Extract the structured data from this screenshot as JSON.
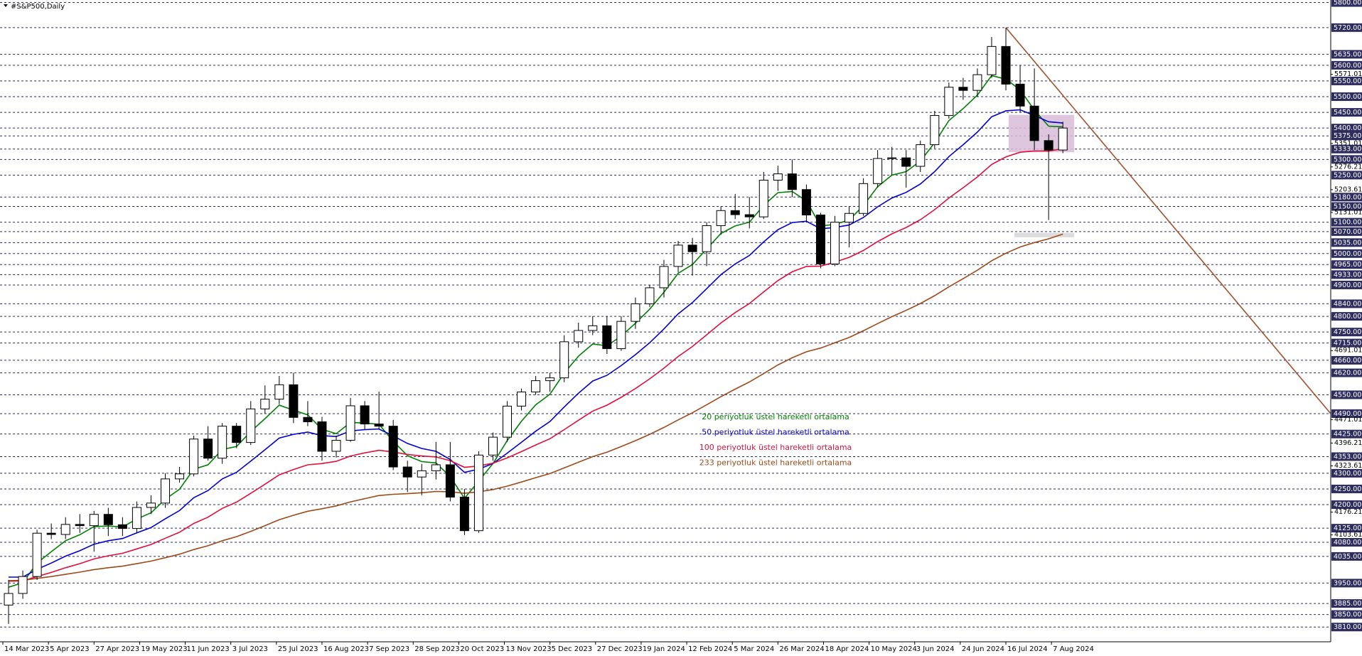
{
  "chart_data": {
    "type": "candlestick",
    "title": "#S&P500,Daily",
    "xlim": [
      -1,
      466
    ],
    "ylim": [
      3763,
      5808
    ],
    "x": [
      2,
      7,
      12,
      17,
      22,
      27,
      32,
      37,
      42,
      47,
      52,
      57,
      62,
      67,
      72,
      77,
      82,
      87,
      92,
      97,
      102,
      107,
      112,
      117,
      122,
      127,
      132,
      137,
      142,
      147,
      152,
      157,
      162,
      167,
      172,
      177,
      182,
      187,
      192,
      197,
      202,
      207,
      212,
      217,
      222,
      227,
      232,
      237,
      242,
      247,
      252,
      257,
      262,
      267,
      272,
      277,
      282,
      287,
      292,
      297,
      302,
      307,
      312,
      317,
      322,
      327,
      332,
      337,
      342,
      347,
      352,
      357,
      362,
      367,
      372
    ],
    "open": [
      3880,
      3917,
      3971,
      4109,
      4105,
      4137,
      4133,
      4169,
      4136,
      4124,
      4191,
      4205,
      4282,
      4298,
      4409,
      4348,
      4450,
      4398,
      4505,
      4536,
      4582,
      4478,
      4464,
      4370,
      4405,
      4515,
      4457,
      4450,
      4320,
      4288,
      4308,
      4327,
      4224,
      4117,
      4358,
      4415,
      4514,
      4559,
      4595,
      4604,
      4719,
      4755,
      4770,
      4697,
      4784,
      4840,
      4891,
      4959,
      5027,
      5006,
      5089,
      5137,
      5124,
      5117,
      5234,
      5254,
      5204,
      5123,
      4967,
      5100,
      5128,
      5223,
      5303,
      5305,
      5278,
      5347,
      5440,
      5530,
      5520,
      5570,
      5660,
      5540,
      5470,
      5360,
      5330
    ],
    "high": [
      3960,
      3990,
      4120,
      4140,
      4160,
      4170,
      4180,
      4190,
      4160,
      4210,
      4230,
      4300,
      4320,
      4420,
      4450,
      4460,
      4460,
      4530,
      4580,
      4610,
      4620,
      4530,
      4480,
      4420,
      4540,
      4530,
      4560,
      4470,
      4340,
      4330,
      4400,
      4400,
      4250,
      4370,
      4430,
      4530,
      4570,
      4610,
      4620,
      4740,
      4780,
      4800,
      4800,
      4800,
      4860,
      4900,
      4980,
      5040,
      5050,
      5100,
      5150,
      5190,
      5180,
      5260,
      5280,
      5300,
      5220,
      5130,
      5120,
      5150,
      5240,
      5330,
      5340,
      5330,
      5360,
      5455,
      5545,
      5560,
      5590,
      5690,
      5720,
      5600,
      5590,
      5380,
      5420
    ],
    "low": [
      3820,
      3900,
      3960,
      4090,
      4090,
      4110,
      4050,
      4100,
      4100,
      4110,
      4170,
      4190,
      4270,
      4290,
      4340,
      4330,
      4380,
      4390,
      4490,
      4520,
      4460,
      4450,
      4340,
      4350,
      4400,
      4440,
      4440,
      4310,
      4240,
      4230,
      4280,
      4210,
      4103,
      4110,
      4340,
      4400,
      4500,
      4550,
      4560,
      4590,
      4700,
      4740,
      4680,
      4690,
      4760,
      4830,
      4860,
      4940,
      4930,
      4960,
      5060,
      5110,
      5080,
      5110,
      5200,
      5180,
      5100,
      4953,
      4960,
      5020,
      5120,
      5210,
      5250,
      5210,
      5260,
      5335,
      5430,
      5490,
      5500,
      5560,
      5520,
      5450,
      5330,
      5107,
      5320
    ],
    "close": [
      3917,
      3971,
      4109,
      4105,
      4137,
      4133,
      4169,
      4136,
      4124,
      4191,
      4205,
      4282,
      4298,
      4409,
      4348,
      4450,
      4398,
      4505,
      4536,
      4582,
      4478,
      4464,
      4370,
      4405,
      4515,
      4457,
      4450,
      4320,
      4288,
      4308,
      4327,
      4224,
      4117,
      4358,
      4415,
      4514,
      4559,
      4595,
      4604,
      4719,
      4755,
      4770,
      4697,
      4784,
      4840,
      4891,
      4959,
      5027,
      5006,
      5089,
      5137,
      5124,
      5117,
      5234,
      5254,
      5204,
      5123,
      4967,
      5100,
      5128,
      5223,
      5303,
      5305,
      5278,
      5347,
      5440,
      5530,
      5520,
      5570,
      5660,
      5540,
      5470,
      5360,
      5330,
      5400
    ],
    "up_color": "#ffffff",
    "down_color": "#000000",
    "series": [
      {
        "name": "20 periyotluk üstel hareketli ortalama",
        "color": "#008000",
        "values": [
          3937,
          3951,
          4014,
          4050,
          4085,
          4104,
          4130,
          4132,
          4129,
          4154,
          4174,
          4217,
          4249,
          4313,
          4327,
          4376,
          4385,
          4433,
          4474,
          4517,
          4501,
          4486,
          4440,
          4426,
          4462,
          4460,
          4456,
          4402,
          4356,
          4337,
          4333,
          4289,
          4220,
          4275,
          4331,
          4404,
          4466,
          4518,
          4552,
          4619,
          4673,
          4712,
          4706,
          4737,
          4778,
          4823,
          4877,
          4937,
          4965,
          5015,
          5064,
          5088,
          5100,
          5154,
          5194,
          5198,
          5168,
          5088,
          5093,
          5107,
          5153,
          5213,
          5250,
          5261,
          5295,
          5353,
          5424,
          5462,
          5505,
          5567,
          5556,
          5522,
          5457,
          5406,
          5404
        ]
      },
      {
        "name": "50 periyotluk üstel hareketli ortalama",
        "color": "#0000cd",
        "values": [
          3969,
          3969,
          3994,
          4014,
          4036,
          4053,
          4074,
          4085,
          4092,
          4110,
          4127,
          4155,
          4181,
          4222,
          4245,
          4282,
          4303,
          4339,
          4375,
          4412,
          4424,
          4431,
          4420,
          4417,
          4435,
          4439,
          4441,
          4419,
          4395,
          4379,
          4370,
          4344,
          4303,
          4313,
          4331,
          4364,
          4399,
          4434,
          4465,
          4511,
          4555,
          4594,
          4612,
          4643,
          4678,
          4716,
          4760,
          4808,
          4844,
          4888,
          4933,
          4967,
          4994,
          5037,
          5076,
          5099,
          5103,
          5079,
          5083,
          5091,
          5115,
          5149,
          5177,
          5195,
          5222,
          5261,
          5309,
          5347,
          5387,
          5436,
          5455,
          5458,
          5440,
          5420,
          5416
        ]
      },
      {
        "name": "100 periyotluk üstel hareketli ortalama",
        "color": "#e0103a",
        "values": [
          3956,
          3957,
          3971,
          3984,
          3999,
          4012,
          4027,
          4037,
          4045,
          4059,
          4073,
          4093,
          4112,
          4140,
          4160,
          4188,
          4208,
          4236,
          4265,
          4295,
          4312,
          4327,
          4331,
          4338,
          4355,
          4365,
          4373,
          4368,
          4360,
          4355,
          4352,
          4340,
          4319,
          4323,
          4332,
          4349,
          4369,
          4390,
          4410,
          4439,
          4469,
          4498,
          4517,
          4542,
          4570,
          4601,
          4635,
          4672,
          4704,
          4741,
          4779,
          4812,
          4841,
          4878,
          4914,
          4942,
          4959,
          4960,
          4973,
          4988,
          5010,
          5038,
          5063,
          5083,
          5108,
          5140,
          5177,
          5210,
          5244,
          5284,
          5308,
          5323,
          5327,
          5327,
          5334
        ]
      },
      {
        "name": "233 periyotluk üstel hareketli ortalama",
        "color": "#9c4a1a",
        "values": [
          3958,
          3959,
          3965,
          3971,
          3978,
          3985,
          3993,
          3999,
          4004,
          4012,
          4020,
          4031,
          4042,
          4057,
          4069,
          4085,
          4098,
          4115,
          4133,
          4152,
          4166,
          4179,
          4187,
          4196,
          4209,
          4219,
          4229,
          4233,
          4235,
          4238,
          4242,
          4241,
          4236,
          4241,
          4248,
          4259,
          4272,
          4286,
          4299,
          4317,
          4335,
          4353,
          4367,
          4385,
          4404,
          4424,
          4446,
          4470,
          4493,
          4518,
          4544,
          4568,
          4591,
          4618,
          4645,
          4668,
          4687,
          4699,
          4716,
          4733,
          4754,
          4777,
          4799,
          4819,
          4841,
          4866,
          4894,
          4920,
          4947,
          4977,
          5001,
          5021,
          5035,
          5047,
          5062
        ]
      }
    ],
    "xticks": [
      {
        "value": 0,
        "label": "14 Mar 2023"
      },
      {
        "value": 16,
        "label": "5 Apr 2023"
      },
      {
        "value": 32,
        "label": "27 Apr 2023"
      },
      {
        "value": 48,
        "label": "19 May 2023"
      },
      {
        "value": 64,
        "label": "11 Jun 2023"
      },
      {
        "value": 80,
        "label": "3 Jul 2023"
      },
      {
        "value": 96,
        "label": "25 Jul 2023"
      },
      {
        "value": 112,
        "label": "16 Aug 2023"
      },
      {
        "value": 128,
        "label": "7 Sep 2023"
      },
      {
        "value": 144,
        "label": "28 Sep 2023"
      },
      {
        "value": 160,
        "label": "20 Oct 2023"
      },
      {
        "value": 176,
        "label": "13 Nov 2023"
      },
      {
        "value": 192,
        "label": "5 Dec 2023"
      },
      {
        "value": 208,
        "label": "27 Dec 2023"
      },
      {
        "value": 224,
        "label": "19 Jan 2024"
      },
      {
        "value": 240,
        "label": "12 Feb 2024"
      },
      {
        "value": 256,
        "label": "5 Mar 2024"
      },
      {
        "value": 272,
        "label": "26 Mar 2024"
      },
      {
        "value": 288,
        "label": "18 Apr 2024"
      },
      {
        "value": 304,
        "label": "10 May 2024"
      },
      {
        "value": 320,
        "label": "3 Jun 2024"
      },
      {
        "value": 336,
        "label": "24 Jun 2024"
      },
      {
        "value": 352,
        "label": "16 Jul 2024"
      },
      {
        "value": 368,
        "label": "7 Aug 2024"
      }
    ],
    "yticks": [
      5571.01,
      5351.01,
      5276.21,
      5203.61,
      5131.01,
      4691.01,
      4471.01,
      4396.21,
      4323.61,
      4176.21,
      4103.61
    ],
    "levels": [
      {
        "value": 5800,
        "label": "5800.00"
      },
      {
        "value": 5720,
        "label": "5720.00"
      },
      {
        "value": 5635,
        "label": "5635.00"
      },
      {
        "value": 5600,
        "label": "5600.00"
      },
      {
        "value": 5550,
        "label": "5550.00"
      },
      {
        "value": 5500,
        "label": "5500.00"
      },
      {
        "value": 5450,
        "label": "5450.00"
      },
      {
        "value": 5400,
        "label": "5400.00"
      },
      {
        "value": 5375,
        "label": "5375.00"
      },
      {
        "value": 5333,
        "label": "5333.00"
      },
      {
        "value": 5300,
        "label": "5300.00"
      },
      {
        "value": 5250,
        "label": "5250.00"
      },
      {
        "value": 5180,
        "label": "5180.00"
      },
      {
        "value": 5150,
        "label": "5150.00"
      },
      {
        "value": 5100,
        "label": "5100.00"
      },
      {
        "value": 5070,
        "label": "5070.00"
      },
      {
        "value": 5035,
        "label": "5035.00"
      },
      {
        "value": 5000,
        "label": "5000.00"
      },
      {
        "value": 4965,
        "label": "4965.00"
      },
      {
        "value": 4933,
        "label": "4933.00"
      },
      {
        "value": 4900,
        "label": "4900.00"
      },
      {
        "value": 4840,
        "label": "4840.00"
      },
      {
        "value": 4800,
        "label": "4800.00"
      },
      {
        "value": 4750,
        "label": "4750.00"
      },
      {
        "value": 4715,
        "label": "4715.00"
      },
      {
        "value": 4660,
        "label": "4660.00"
      },
      {
        "value": 4620,
        "label": "4620.00"
      },
      {
        "value": 4550,
        "label": "4550.00"
      },
      {
        "value": 4490,
        "label": "4490.00"
      },
      {
        "value": 4425,
        "label": "4425.00"
      },
      {
        "value": 4353,
        "label": "4353.00"
      },
      {
        "value": 4300,
        "label": "4300.00"
      },
      {
        "value": 4250,
        "label": "4250.00"
      },
      {
        "value": 4200,
        "label": "4200.00"
      },
      {
        "value": 4125,
        "label": "4125.00"
      },
      {
        "value": 4080,
        "label": "4080.00"
      },
      {
        "value": 4035,
        "label": "4035.00"
      },
      {
        "value": 3950,
        "label": "3950.00"
      },
      {
        "value": 3885,
        "label": "3885.00"
      },
      {
        "value": 3850,
        "label": "3850.00"
      },
      {
        "value": 3810,
        "label": "3810.00"
      }
    ],
    "level_color": "#2e2e5e",
    "trendline": {
      "x": [
        352,
        466
      ],
      "values": [
        5720,
        4490
      ],
      "color": "#a0522d"
    },
    "zones": [
      {
        "x": [
          353,
          376
        ],
        "values": [
          5323,
          5442
        ],
        "color": "#d8bcd8"
      },
      {
        "x": [
          355,
          376
        ],
        "values": [
          5052,
          5066
        ],
        "color": "#d6d6d6"
      }
    ]
  }
}
